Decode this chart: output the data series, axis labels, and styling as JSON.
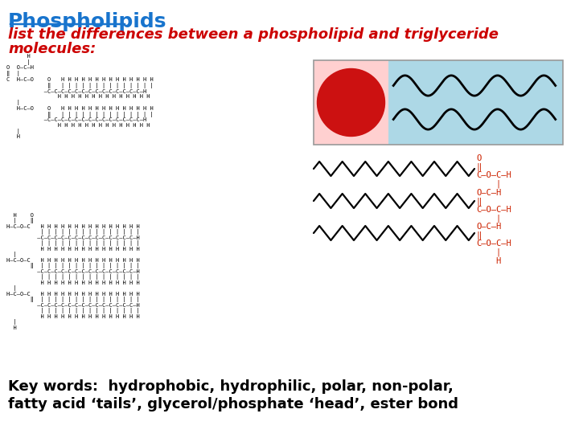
{
  "title": "Phospholipids",
  "title_color": "#1874CD",
  "subtitle1": "list the differences between a phospholipid and triglyceride",
  "subtitle2": "molecules:",
  "subtitle_color": "#CC0000",
  "subtitle_fontsize": 13,
  "title_fontsize": 18,
  "keywords_line1": "Key words:  hydrophobic, hydrophilic, polar, non-polar,",
  "keywords_line2": "fatty acid ‘tails’, glycerol/phosphate ‘head’, ester bond",
  "keywords_fontsize": 13,
  "bg_color": "#ffffff",
  "head_color": "#CC1111",
  "head_bg": "#FFD0D0",
  "tail_bg": "#ADD8E6",
  "box_border": "#999999",
  "zigzag_color": "#222222",
  "glycerol_color": "#CC2200"
}
